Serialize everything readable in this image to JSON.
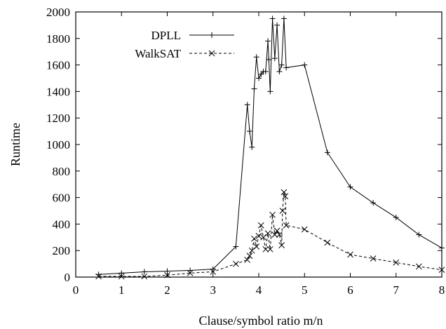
{
  "chart_data": {
    "type": "line",
    "xlabel": "Clause/symbol ratio m/n",
    "ylabel": "Runtime",
    "xlim": [
      0,
      8
    ],
    "ylim": [
      0,
      2000
    ],
    "xticks": [
      0,
      1,
      2,
      3,
      4,
      5,
      6,
      7,
      8
    ],
    "yticks": [
      0,
      200,
      400,
      600,
      800,
      1000,
      1200,
      1400,
      1600,
      1800,
      2000
    ],
    "grid": false,
    "legend_position": "top-left",
    "series": [
      {
        "name": "DPLL",
        "line_style": "solid",
        "marker": "plus",
        "color": "#000000",
        "points": [
          [
            0.5,
            20
          ],
          [
            1.0,
            30
          ],
          [
            1.5,
            40
          ],
          [
            2.0,
            45
          ],
          [
            2.5,
            50
          ],
          [
            3.0,
            60
          ],
          [
            3.5,
            230
          ],
          [
            3.75,
            1300
          ],
          [
            3.8,
            1100
          ],
          [
            3.85,
            980
          ],
          [
            3.9,
            1420
          ],
          [
            3.95,
            1660
          ],
          [
            4.0,
            1500
          ],
          [
            4.05,
            1530
          ],
          [
            4.1,
            1550
          ],
          [
            4.15,
            1550
          ],
          [
            4.2,
            1780
          ],
          [
            4.22,
            1640
          ],
          [
            4.25,
            1400
          ],
          [
            4.3,
            1950
          ],
          [
            4.35,
            1650
          ],
          [
            4.4,
            1900
          ],
          [
            4.45,
            1550
          ],
          [
            4.5,
            1600
          ],
          [
            4.55,
            1950
          ],
          [
            4.6,
            1580
          ],
          [
            5.0,
            1600
          ],
          [
            5.5,
            940
          ],
          [
            6.0,
            680
          ],
          [
            6.5,
            560
          ],
          [
            7.0,
            450
          ],
          [
            7.5,
            320
          ],
          [
            8.0,
            220
          ]
        ]
      },
      {
        "name": "WalkSAT",
        "line_style": "dashed",
        "marker": "x",
        "color": "#000000",
        "points": [
          [
            0.5,
            5
          ],
          [
            1.0,
            5
          ],
          [
            1.5,
            5
          ],
          [
            2.0,
            15
          ],
          [
            2.5,
            30
          ],
          [
            3.0,
            40
          ],
          [
            3.5,
            100
          ],
          [
            3.75,
            130
          ],
          [
            3.8,
            160
          ],
          [
            3.85,
            200
          ],
          [
            3.9,
            290
          ],
          [
            3.95,
            230
          ],
          [
            4.0,
            310
          ],
          [
            4.05,
            390
          ],
          [
            4.1,
            300
          ],
          [
            4.15,
            210
          ],
          [
            4.2,
            330
          ],
          [
            4.25,
            210
          ],
          [
            4.3,
            470
          ],
          [
            4.35,
            320
          ],
          [
            4.4,
            350
          ],
          [
            4.45,
            320
          ],
          [
            4.5,
            240
          ],
          [
            4.52,
            500
          ],
          [
            4.55,
            640
          ],
          [
            4.58,
            610
          ],
          [
            4.6,
            390
          ],
          [
            5.0,
            360
          ],
          [
            5.5,
            260
          ],
          [
            6.0,
            170
          ],
          [
            6.5,
            140
          ],
          [
            7.0,
            110
          ],
          [
            7.5,
            80
          ],
          [
            8.0,
            55
          ]
        ]
      }
    ]
  }
}
